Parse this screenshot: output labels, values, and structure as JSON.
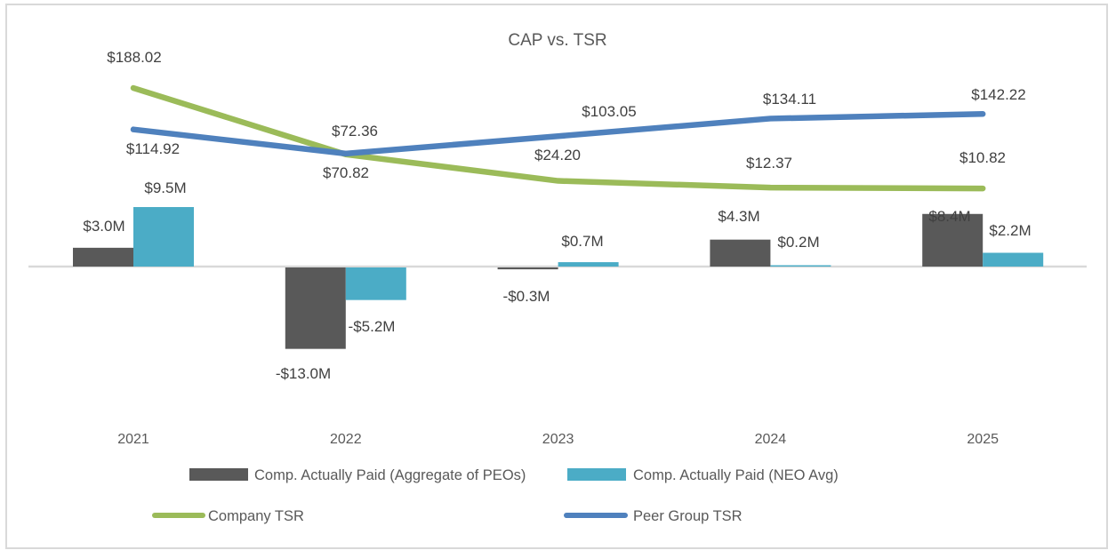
{
  "chart_data": {
    "type": "bar+line",
    "title": "CAP vs. TSR",
    "categories": [
      "2021",
      "2022",
      "2023",
      "2024",
      "2025"
    ],
    "bar_series": [
      {
        "name": "Comp. Actually Paid (Aggregate of PEOs)",
        "color": "#595959",
        "values": [
          3.0,
          -13.0,
          -0.3,
          4.3,
          8.4
        ],
        "labels": [
          "$3.0M",
          "-$13.0M",
          "-$0.3M",
          "$4.3M",
          "$8.4M"
        ]
      },
      {
        "name": "Comp. Actually Paid (NEO Avg)",
        "color": "#4bacc6",
        "values": [
          9.5,
          -5.2,
          0.7,
          0.2,
          2.2
        ],
        "labels": [
          "$9.5M",
          "-$5.2M",
          "$0.7M",
          "$0.2M",
          "$2.2M"
        ]
      }
    ],
    "line_series": [
      {
        "name": "Company TSR",
        "color": "#9bbb59",
        "values": [
          188.02,
          70.82,
          24.2,
          12.37,
          10.82
        ],
        "labels": [
          "$188.02",
          "$70.82",
          "$24.20",
          "$12.37",
          "$10.82"
        ]
      },
      {
        "name": "Peer Group TSR",
        "color": "#4f81bd",
        "values": [
          114.92,
          72.36,
          103.05,
          134.11,
          142.22
        ],
        "labels": [
          "$114.92",
          "$72.36",
          "$103.05",
          "$134.11",
          "$142.22"
        ]
      }
    ],
    "bar_axis_unit": "$M",
    "line_axis_unit": "$",
    "grid": false,
    "legend_position": "bottom"
  }
}
